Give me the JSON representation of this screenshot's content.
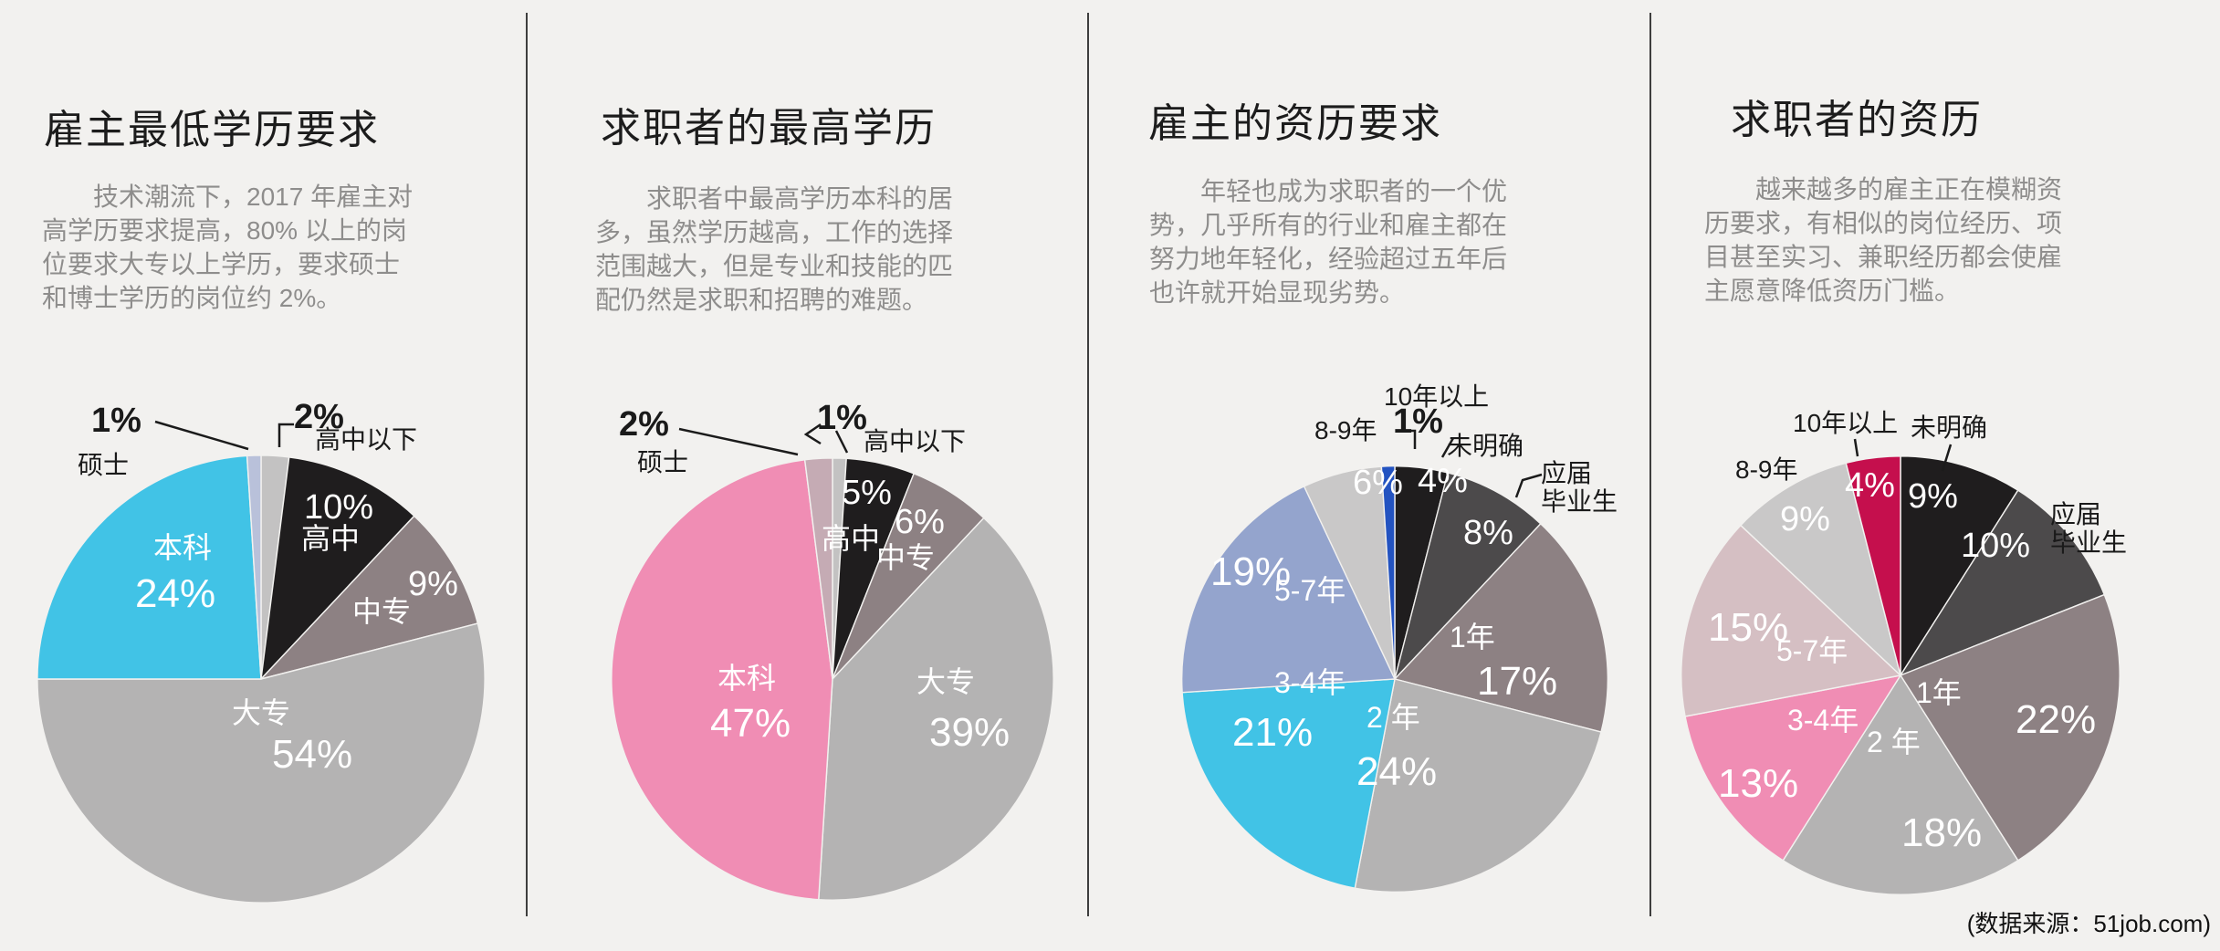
{
  "page": {
    "background": "#f2f1ef",
    "source_note": "(数据来源：51job.com)"
  },
  "sections": [
    {
      "title": "雇主最低学历要求",
      "paragraph": "技术潮流下，2017 年雇主对\n高学历要求提高，80% 以上的岗\n位要求大专以上学历，要求硕士\n和博士学历的岗位约 2%。"
    },
    {
      "title": "求职者的最高学历",
      "paragraph": "求职者中最高学历本科的居\n多，虽然学历越高，工作的选择\n范围越大，但是专业和技能的匹\n配仍然是求职和招聘的难题。"
    },
    {
      "title": "雇主的资历要求",
      "paragraph": "年轻也成为求职者的一个优\n势，几乎所有的行业和雇主都在\n努力地年轻化，经验超过五年后\n也许就开始显现劣势。"
    },
    {
      "title": "求职者的资历",
      "paragraph": "越来越多的雇主正在模糊资\n历要求，有相似的岗位经历、项\n目甚至实习、兼职经历都会使雇\n主愿意降低资历门槛。"
    }
  ],
  "chart_data": [
    {
      "type": "pie",
      "title": "雇主最低学历要求",
      "unit": "%",
      "start": "12-oclock",
      "direction": "clockwise",
      "slices": [
        {
          "label": "高中以下",
          "value": 2,
          "pct": "2%",
          "color": "#c3c2c2"
        },
        {
          "label": "高中",
          "value": 10,
          "pct": "10%",
          "color": "#1f1d1e"
        },
        {
          "label": "中专",
          "value": 9,
          "pct": "9%",
          "color": "#8d8183"
        },
        {
          "label": "大专",
          "value": 54,
          "pct": "54%",
          "color": "#b4b3b3"
        },
        {
          "label": "本科",
          "value": 24,
          "pct": "24%",
          "color": "#41c3e6"
        },
        {
          "label": "硕士",
          "value": 1,
          "pct": "1%",
          "color": "#b9c1da"
        }
      ]
    },
    {
      "type": "pie",
      "title": "求职者的最高学历",
      "unit": "%",
      "start": "12-oclock",
      "direction": "clockwise",
      "slices": [
        {
          "label": "高中以下",
          "value": 1,
          "pct": "1%",
          "color": "#c3c2c2"
        },
        {
          "label": "高中",
          "value": 5,
          "pct": "5%",
          "color": "#1f1d1e"
        },
        {
          "label": "中专",
          "value": 6,
          "pct": "6%",
          "color": "#8d8183"
        },
        {
          "label": "大专",
          "value": 39,
          "pct": "39%",
          "color": "#b4b3b3"
        },
        {
          "label": "本科",
          "value": 47,
          "pct": "47%",
          "color": "#f08db4"
        },
        {
          "label": "硕士",
          "value": 2,
          "pct": "2%",
          "color": "#c5abb4"
        }
      ]
    },
    {
      "type": "pie",
      "title": "雇主的资历要求",
      "unit": "%",
      "start": "12-oclock",
      "direction": "clockwise",
      "slices": [
        {
          "label": "未明确",
          "value": 4,
          "pct": "4%",
          "color": "#1f1d1e"
        },
        {
          "label": "应届毕业生",
          "display": "应届\n毕业生",
          "value": 8,
          "pct": "8%",
          "color": "#4c4a4b"
        },
        {
          "label": "1年",
          "value": 17,
          "pct": "17%",
          "color": "#8d8183"
        },
        {
          "label": "2 年",
          "value": 24,
          "pct": "24%",
          "color": "#b4b3b3"
        },
        {
          "label": "3-4年",
          "value": 21,
          "pct": "21%",
          "color": "#41c3e6"
        },
        {
          "label": "5-7年",
          "value": 19,
          "pct": "19%",
          "color": "#94a4cd"
        },
        {
          "label": "8-9年",
          "value": 6,
          "pct": "6%",
          "color": "#c9c8c8"
        },
        {
          "label": "10年以上",
          "value": 1,
          "pct": "1%",
          "color": "#2353c1"
        }
      ]
    },
    {
      "type": "pie",
      "title": "求职者的资历",
      "unit": "%",
      "start": "12-oclock",
      "direction": "clockwise",
      "slices": [
        {
          "label": "未明确",
          "value": 9,
          "pct": "9%",
          "color": "#1f1d1e"
        },
        {
          "label": "应届毕业生",
          "display": "应届\n毕业生",
          "value": 10,
          "pct": "10%",
          "color": "#4c4a4b"
        },
        {
          "label": "1年",
          "value": 22,
          "pct": "22%",
          "color": "#8d8183"
        },
        {
          "label": "2 年",
          "value": 18,
          "pct": "18%",
          "color": "#b4b3b3"
        },
        {
          "label": "3-4年",
          "value": 13,
          "pct": "13%",
          "color": "#f08db4"
        },
        {
          "label": "5-7年",
          "value": 15,
          "pct": "15%",
          "color": "#d5bfc3"
        },
        {
          "label": "8-9年",
          "value": 9,
          "pct": "9%",
          "color": "#c9c8c8"
        },
        {
          "label": "10年以上",
          "value": 4,
          "pct": "4%",
          "color": "#c50f4d"
        }
      ]
    }
  ]
}
